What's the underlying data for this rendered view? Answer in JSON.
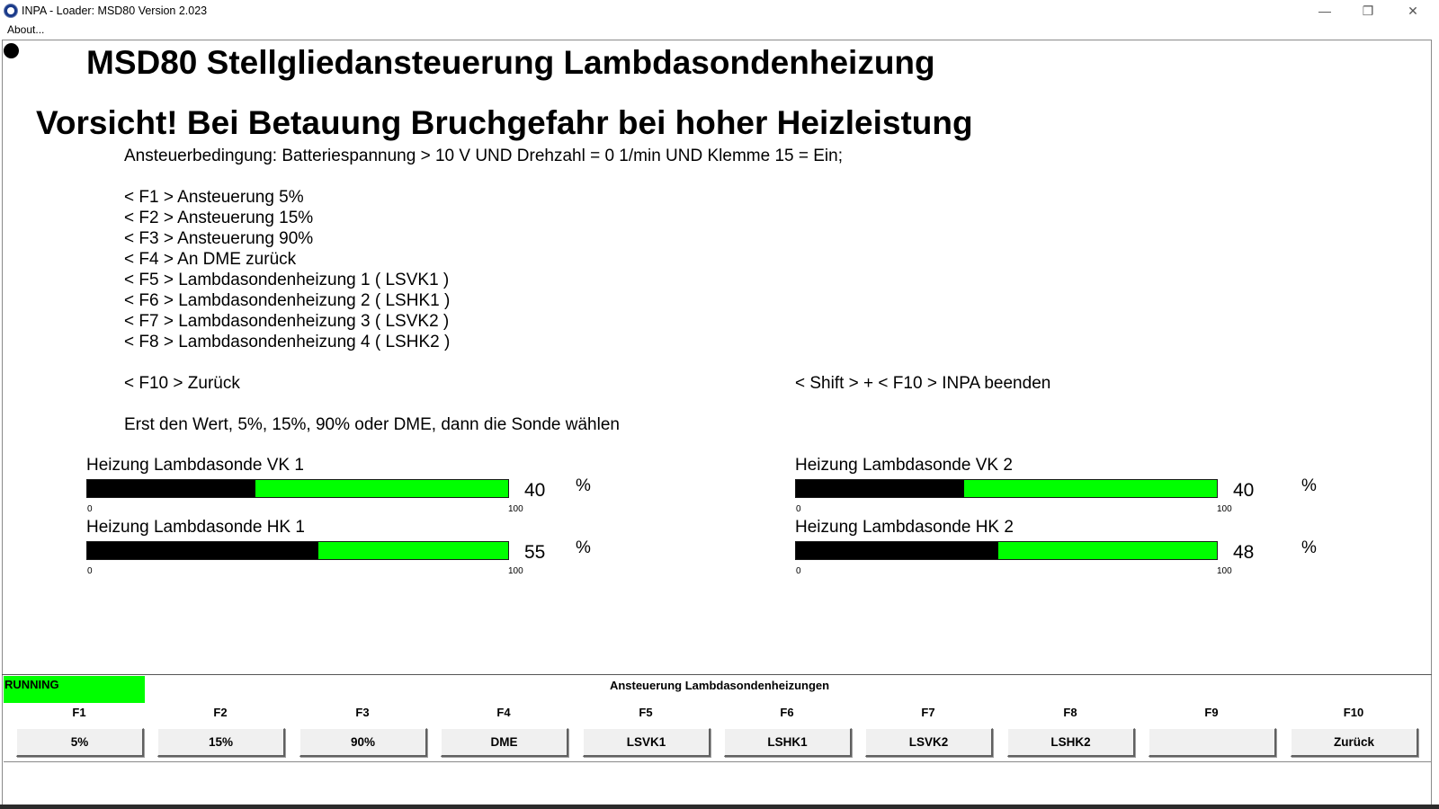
{
  "window": {
    "title": "INPA - Loader:  MSD80 Version 2.023",
    "minimize_glyph": "—",
    "restore_glyph": "❐",
    "close_glyph": "✕"
  },
  "menu": {
    "about": "About..."
  },
  "screen": {
    "title": "MSD80 Stellgliedansteuerung Lambdasondenheizung",
    "warning": "Vorsicht! Bei Betauung Bruchgefahr bei hoher Heizleistung",
    "condition": "Ansteuerbedingung: Batteriespannung > 10 V UND Drehzahl = 0 1/min UND Klemme 15 = Ein;",
    "shortcuts": [
      "< F1  > Ansteuerung 5%",
      "< F2  > Ansteuerung 15%",
      "< F3  > Ansteuerung 90%",
      "< F4  > An DME zurück",
      "< F5  > Lambdasondenheizung 1 ( LSVK1 )",
      "< F6  > Lambdasondenheizung 2 ( LSHK1 )",
      "< F7  > Lambdasondenheizung 3 ( LSVK2 )",
      "< F8  > Lambdasondenheizung 4 ( LSHK2 )"
    ],
    "back_hint": "< F10 > Zurück",
    "quit_hint": "< Shift > + < F10 > INPA beenden",
    "instruction": "Erst den Wert, 5%, 15%, 90% oder DME, dann die Sonde wählen"
  },
  "gauges": [
    {
      "label": "Heizung Lambdasonde VK 1",
      "value": 40,
      "min": "0",
      "max": "100",
      "unit": "%"
    },
    {
      "label": "Heizung Lambdasonde HK 1",
      "value": 55,
      "min": "0",
      "max": "100",
      "unit": "%"
    },
    {
      "label": "Heizung Lambdasonde VK 2",
      "value": 40,
      "min": "0",
      "max": "100",
      "unit": "%"
    },
    {
      "label": "Heizung Lambdasonde HK 2",
      "value": 48,
      "min": "0",
      "max": "100",
      "unit": "%"
    }
  ],
  "fkeys": {
    "status": "RUNNING",
    "status_color": "#00ff00",
    "title": "Ansteuerung Lambdasondenheizungen",
    "keys": [
      {
        "key": "F1",
        "label": "5%"
      },
      {
        "key": "F2",
        "label": "15%"
      },
      {
        "key": "F3",
        "label": "90%"
      },
      {
        "key": "F4",
        "label": "DME"
      },
      {
        "key": "F5",
        "label": "LSVK1"
      },
      {
        "key": "F6",
        "label": "LSHK1"
      },
      {
        "key": "F7",
        "label": "LSVK2"
      },
      {
        "key": "F8",
        "label": "LSHK2"
      },
      {
        "key": "F9",
        "label": ""
      },
      {
        "key": "F10",
        "label": "Zurück"
      }
    ]
  },
  "colors": {
    "bar_fill": "#00ff00",
    "bar_level": "#000000"
  }
}
